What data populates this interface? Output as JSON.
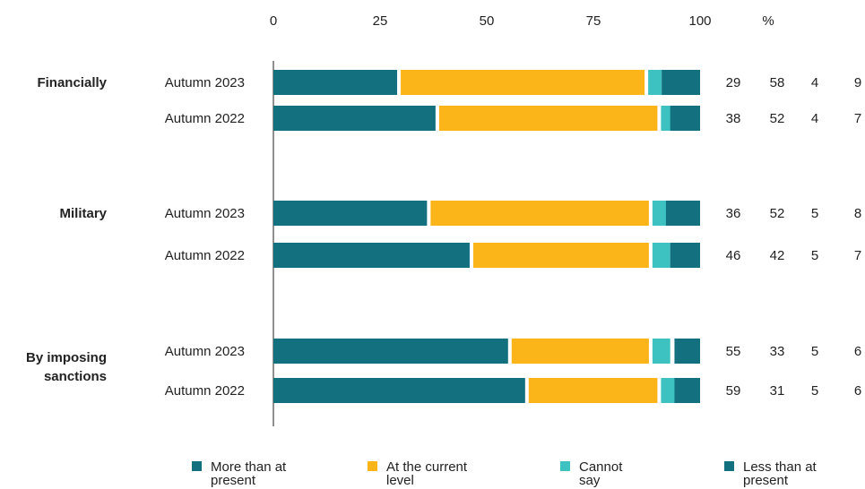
{
  "chart_data": {
    "type": "bar",
    "orientation": "horizontal",
    "stacked": true,
    "x_ticks": [
      "0",
      "25",
      "50",
      "75",
      "100"
    ],
    "unit_label": "%",
    "xlim": [
      0,
      100
    ],
    "grid": false,
    "legend_position": "bottom",
    "groups": [
      {
        "label": "Financially",
        "rows": [
          {
            "label": "Autumn 2023",
            "values": [
              29,
              58,
              4,
              9
            ]
          },
          {
            "label": "Autumn 2022",
            "values": [
              38,
              52,
              4,
              7
            ]
          }
        ]
      },
      {
        "label": "Military",
        "rows": [
          {
            "label": "Autumn 2023",
            "values": [
              36,
              52,
              5,
              8
            ]
          },
          {
            "label": "Autumn 2022",
            "values": [
              46,
              42,
              5,
              7
            ]
          }
        ]
      },
      {
        "label": "By imposing sanctions",
        "label_lines": [
          "By imposing",
          "sanctions"
        ],
        "rows": [
          {
            "label": "Autumn 2023",
            "values": [
              55,
              33,
              5,
              6
            ]
          },
          {
            "label": "Autumn 2022",
            "values": [
              59,
              31,
              5,
              6
            ]
          }
        ]
      }
    ],
    "series": [
      {
        "name": "More than at present",
        "name_lines": [
          "More than at",
          "present"
        ],
        "color": "#12707f"
      },
      {
        "name": "At the current level",
        "name_lines": [
          "At the current",
          "level"
        ],
        "color": "#fbb519"
      },
      {
        "name": "Cannot say",
        "name_lines": [
          "Cannot",
          "say"
        ],
        "color": "#3ec1c1"
      },
      {
        "name": "Less than at present",
        "name_lines": [
          "Less than at",
          "present"
        ],
        "color": "#12707f"
      }
    ]
  }
}
